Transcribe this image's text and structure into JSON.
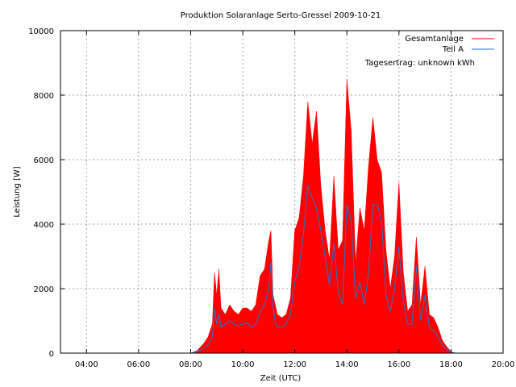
{
  "chart_data": {
    "type": "area",
    "title": "Produktion Solaranlage Serto-Gressel 2009-10-21",
    "xlabel": "Zeit (UTC)",
    "ylabel": "Leistung [W]",
    "xlim": [
      "03:00",
      "20:00"
    ],
    "ylim": [
      0,
      10000
    ],
    "x_ticks": [
      "04:00",
      "06:00",
      "08:00",
      "10:00",
      "12:00",
      "14:00",
      "16:00",
      "18:00",
      "20:00"
    ],
    "y_ticks": [
      "0",
      "2000",
      "4000",
      "6000",
      "8000",
      "10000"
    ],
    "grid": true,
    "legend_position": "top-right",
    "annotation": "Tagesertrag: unknown kWh",
    "series": [
      {
        "name": "Gesamtanlage",
        "color": "#ff0000",
        "style": "filled",
        "x": [
          "08:00",
          "08:15",
          "08:30",
          "08:40",
          "08:50",
          "08:55",
          "09:00",
          "09:05",
          "09:10",
          "09:20",
          "09:30",
          "09:40",
          "09:50",
          "10:00",
          "10:10",
          "10:20",
          "10:30",
          "10:40",
          "10:50",
          "11:00",
          "11:05",
          "11:10",
          "11:15",
          "11:20",
          "11:30",
          "11:40",
          "11:50",
          "12:00",
          "12:10",
          "12:20",
          "12:30",
          "12:40",
          "12:50",
          "13:00",
          "13:10",
          "13:20",
          "13:30",
          "13:40",
          "13:50",
          "14:00",
          "14:10",
          "14:20",
          "14:30",
          "14:40",
          "14:50",
          "15:00",
          "15:10",
          "15:20",
          "15:30",
          "15:40",
          "15:50",
          "16:00",
          "16:10",
          "16:20",
          "16:30",
          "16:40",
          "16:50",
          "17:00",
          "17:10",
          "17:20",
          "17:30",
          "17:40",
          "17:50",
          "18:00",
          "18:10"
        ],
        "values": [
          0,
          80,
          300,
          500,
          900,
          2500,
          1800,
          2600,
          1400,
          1200,
          1500,
          1300,
          1200,
          1400,
          1400,
          1300,
          1500,
          2400,
          2600,
          3500,
          3800,
          1800,
          1500,
          1200,
          1100,
          1200,
          1700,
          3800,
          4200,
          5500,
          7800,
          6500,
          7500,
          5200,
          3800,
          2900,
          5500,
          3200,
          3500,
          8500,
          6900,
          2800,
          4500,
          3800,
          5800,
          7300,
          6000,
          5600,
          3200,
          2000,
          3000,
          5300,
          2500,
          1300,
          1500,
          3600,
          1500,
          2700,
          1200,
          1100,
          800,
          400,
          200,
          50,
          0
        ]
      },
      {
        "name": "Teil A",
        "color": "#1f77d0",
        "style": "line",
        "x": [
          "08:00",
          "08:15",
          "08:30",
          "08:40",
          "08:50",
          "08:55",
          "09:00",
          "09:05",
          "09:10",
          "09:20",
          "09:30",
          "09:40",
          "09:50",
          "10:00",
          "10:10",
          "10:20",
          "10:30",
          "10:40",
          "10:50",
          "11:00",
          "11:05",
          "11:10",
          "11:15",
          "11:20",
          "11:30",
          "11:40",
          "11:50",
          "12:00",
          "12:10",
          "12:20",
          "12:30",
          "12:40",
          "12:50",
          "13:00",
          "13:10",
          "13:20",
          "13:30",
          "13:40",
          "13:50",
          "14:00",
          "14:10",
          "14:20",
          "14:30",
          "14:40",
          "14:50",
          "15:00",
          "15:10",
          "15:20",
          "15:30",
          "15:40",
          "15:50",
          "16:00",
          "16:10",
          "16:20",
          "16:30",
          "16:40",
          "16:50",
          "17:00",
          "17:10",
          "17:20",
          "17:30",
          "17:40",
          "17:50",
          "18:00",
          "18:10"
        ],
        "values": [
          0,
          50,
          150,
          250,
          500,
          1400,
          900,
          1200,
          800,
          900,
          1000,
          900,
          850,
          900,
          950,
          800,
          900,
          1300,
          1500,
          2000,
          2800,
          1400,
          1000,
          800,
          800,
          900,
          1200,
          2200,
          2700,
          3700,
          5200,
          4800,
          4500,
          3800,
          3000,
          2100,
          3400,
          1900,
          1500,
          4600,
          4100,
          1700,
          2200,
          1500,
          2500,
          4600,
          4600,
          4100,
          1800,
          1300,
          2000,
          3300,
          1600,
          900,
          900,
          2700,
          1000,
          1800,
          800,
          700,
          500,
          250,
          120,
          30,
          0
        ]
      }
    ]
  }
}
